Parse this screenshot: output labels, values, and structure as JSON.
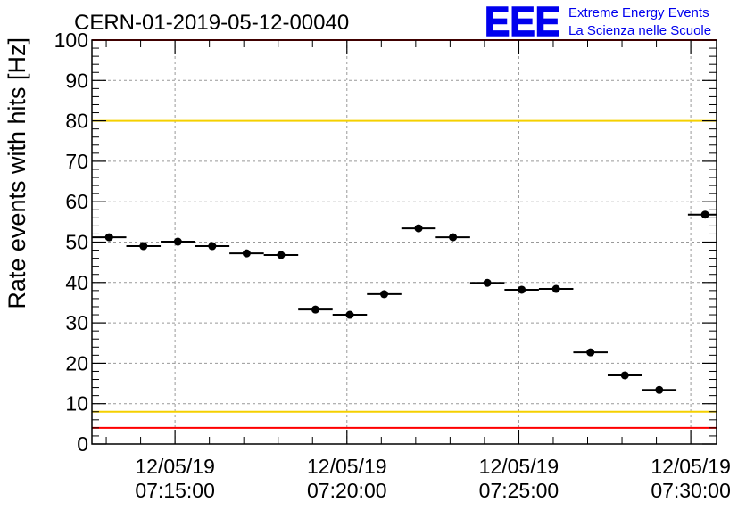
{
  "chart_data": {
    "type": "scatter",
    "title": "CERN-01-2019-05-12-00040",
    "ylabel": "Rate events with hits [Hz]",
    "xlabel": "",
    "ylim": [
      0,
      100
    ],
    "yticks": [
      0,
      10,
      20,
      30,
      40,
      50,
      60,
      70,
      80,
      90,
      100
    ],
    "xlim": [
      "07:12:35",
      "07:30:45"
    ],
    "xticks": [
      {
        "date": "12/05/19",
        "time": "07:15:00"
      },
      {
        "date": "12/05/19",
        "time": "07:20:00"
      },
      {
        "date": "12/05/19",
        "time": "07:25:00"
      },
      {
        "date": "12/05/19",
        "time": "07:30:00"
      }
    ],
    "grid": true,
    "series": [
      {
        "x": [
          "07:13:05",
          "07:14:05",
          "07:15:05",
          "07:16:05",
          "07:17:05",
          "07:18:05",
          "07:19:05",
          "07:20:05",
          "07:21:05",
          "07:22:05",
          "07:23:05",
          "07:24:05",
          "07:25:05",
          "07:26:05",
          "07:27:05",
          "07:28:05",
          "07:29:05",
          "07:30:25"
        ],
        "x_halfwidth_seconds": 30,
        "values": [
          51.2,
          49.0,
          50.1,
          49.0,
          47.2,
          46.8,
          33.3,
          32.0,
          37.1,
          53.4,
          51.2,
          39.9,
          38.2,
          38.4,
          22.7,
          17.0,
          13.4,
          56.8
        ],
        "color": "#000000"
      }
    ],
    "reference_lines": [
      {
        "y": 80,
        "color": "#f5d000"
      },
      {
        "y": 8,
        "color": "#f5d000"
      },
      {
        "y": 100,
        "color": "#ff0000"
      },
      {
        "y": 4,
        "color": "#ff0000"
      }
    ]
  },
  "logo": {
    "text": "EEE",
    "line1": "Extreme Energy Events",
    "line2": "La Scienza nelle Scuole",
    "color": "#0000ee"
  }
}
